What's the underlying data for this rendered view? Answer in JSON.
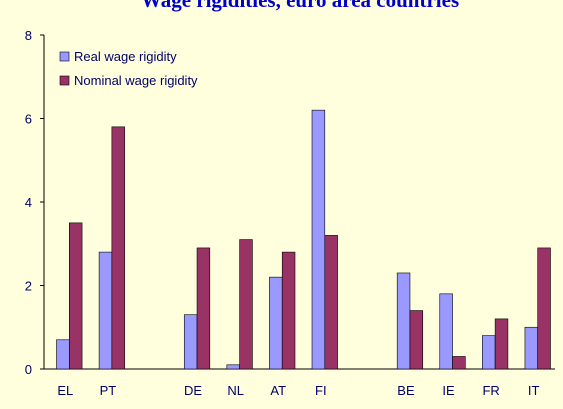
{
  "chart_data": {
    "type": "bar",
    "title": "Wage rigidities, euro area countries",
    "categories": [
      "EL",
      "PT",
      null,
      "DE",
      "NL",
      "AT",
      "FI",
      null,
      "BE",
      "IE",
      "FR",
      "IT"
    ],
    "series": [
      {
        "name": "Real wage rigidity",
        "color": "#9999ff",
        "values": [
          0.7,
          2.8,
          null,
          1.3,
          0.1,
          2.2,
          6.2,
          null,
          2.3,
          1.8,
          0.8,
          1.0
        ]
      },
      {
        "name": "Nominal wage rigidity",
        "color": "#993366",
        "values": [
          3.5,
          5.8,
          null,
          2.9,
          3.1,
          2.8,
          3.2,
          null,
          1.4,
          0.3,
          1.2,
          2.9
        ]
      }
    ],
    "ylim": [
      0,
      8
    ],
    "yticks": [
      0,
      2,
      4,
      6,
      8
    ],
    "legend": "upper left"
  }
}
